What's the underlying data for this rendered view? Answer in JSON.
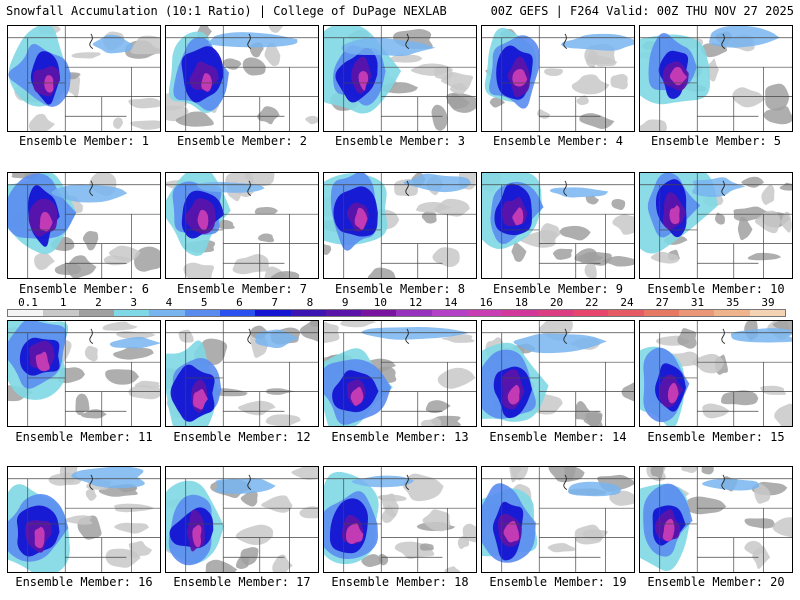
{
  "header": {
    "left": "Snowfall Accumulation (10:1 Ratio) | College of DuPage NEXLAB",
    "right": "00Z GEFS | F264 Valid: 00Z THU NOV 27 2025"
  },
  "colorbar": {
    "ticks": [
      "0.1",
      "1",
      "2",
      "3",
      "4",
      "5",
      "6",
      "7",
      "8",
      "9",
      "10",
      "12",
      "14",
      "16",
      "18",
      "20",
      "22",
      "24",
      "27",
      "31",
      "35",
      "39"
    ],
    "colors": [
      "#f4f4f4",
      "#c8c8c8",
      "#a0a0a0",
      "#7fd8e6",
      "#78b4f0",
      "#5a8cf0",
      "#2a50f0",
      "#1414d2",
      "#3c14b4",
      "#5a14aa",
      "#7814a0",
      "#9632be",
      "#b440c8",
      "#c83cb4",
      "#d2389c",
      "#dc3c82",
      "#e6466e",
      "#e65a64",
      "#e67864",
      "#ec9678",
      "#f0b48c",
      "#f4d2b4"
    ]
  },
  "members": [
    {
      "caption": "Ensemble Member: 1"
    },
    {
      "caption": "Ensemble Member: 2"
    },
    {
      "caption": "Ensemble Member: 3"
    },
    {
      "caption": "Ensemble Member: 4"
    },
    {
      "caption": "Ensemble Member: 5"
    },
    {
      "caption": "Ensemble Member: 6"
    },
    {
      "caption": "Ensemble Member: 7"
    },
    {
      "caption": "Ensemble Member: 8"
    },
    {
      "caption": "Ensemble Member: 9"
    },
    {
      "caption": "Ensemble Member: 10"
    },
    {
      "caption": "Ensemble Member: 11"
    },
    {
      "caption": "Ensemble Member: 12"
    },
    {
      "caption": "Ensemble Member: 13"
    },
    {
      "caption": "Ensemble Member: 14"
    },
    {
      "caption": "Ensemble Member: 15"
    },
    {
      "caption": "Ensemble Member: 16"
    },
    {
      "caption": "Ensemble Member: 17"
    },
    {
      "caption": "Ensemble Member: 18"
    },
    {
      "caption": "Ensemble Member: 19"
    },
    {
      "caption": "Ensemble Member: 20"
    }
  ]
}
